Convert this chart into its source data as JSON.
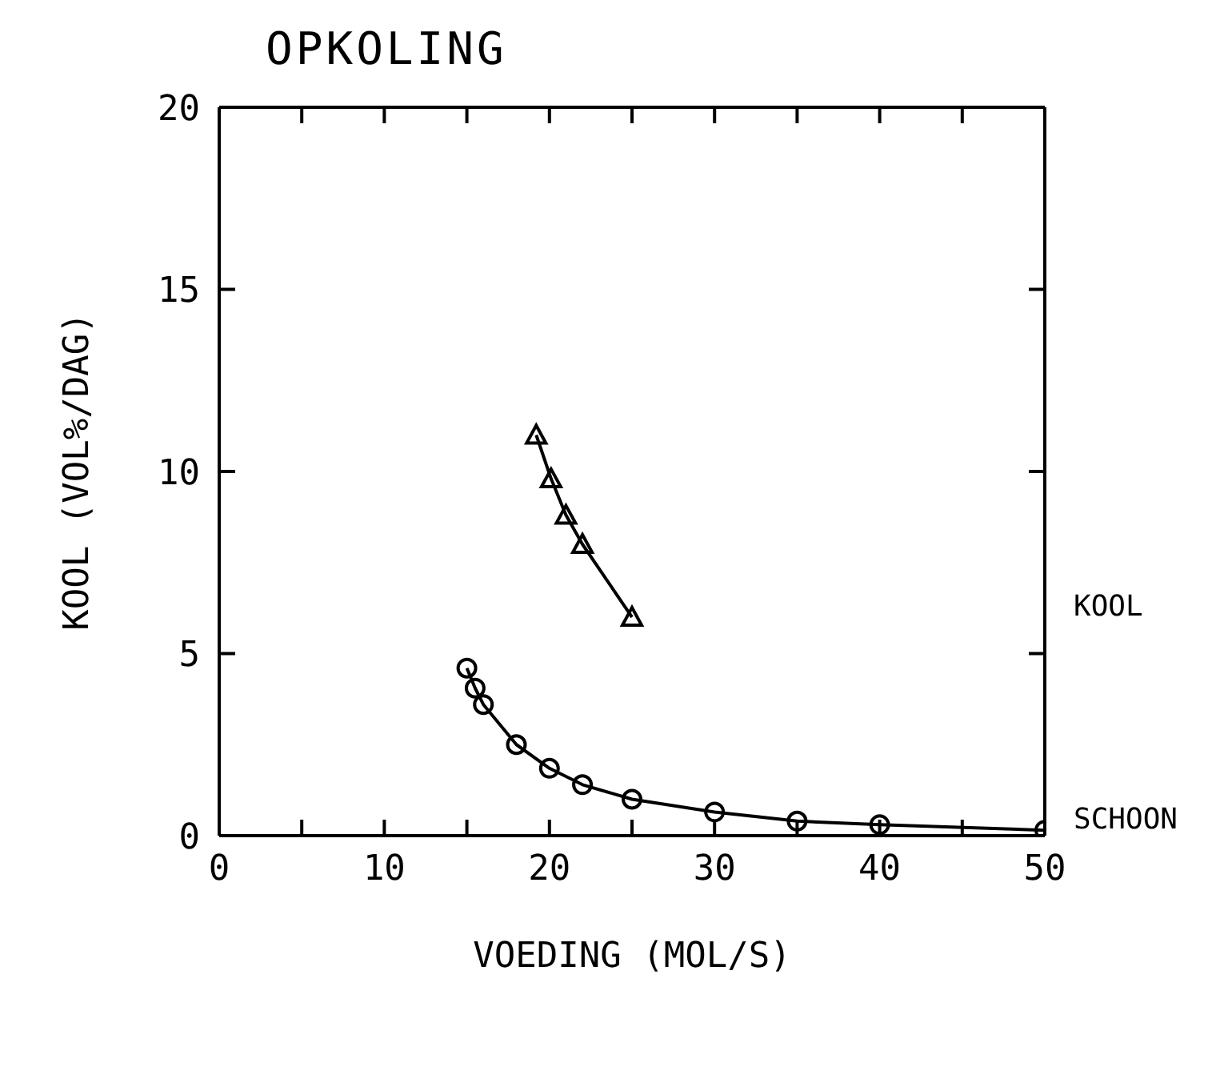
{
  "chart_data": {
    "type": "line",
    "title": "OPKOLING",
    "xlabel": "VOEDING   (MOL/S)",
    "ylabel": "KOOL   (VOL%/DAG)",
    "xlim": [
      0,
      50
    ],
    "xticks": [
      0,
      {
        "value": 5,
        "label": null
      },
      10,
      {
        "value": 15,
        "label": null
      },
      20,
      {
        "value": 25,
        "label": null
      },
      30,
      {
        "value": 35,
        "label": null
      },
      40,
      {
        "value": 45,
        "label": null
      },
      50
    ],
    "ylim": [
      0,
      20
    ],
    "yticks": [
      0,
      5,
      10,
      15,
      20
    ],
    "series": [
      {
        "name": "KOOL",
        "color": "#000000",
        "marker": "triangle",
        "x": [
          19.2,
          20.1,
          21,
          22,
          25
        ],
        "values": [
          11.0,
          9.8,
          8.8,
          8.0,
          6.0
        ]
      },
      {
        "name": "SCHOON",
        "color": "#000000",
        "marker": "circle",
        "x": [
          15,
          15.5,
          16,
          18,
          20,
          22,
          25,
          30,
          35,
          40,
          50
        ],
        "values": [
          4.6,
          4.05,
          3.6,
          2.5,
          1.85,
          1.4,
          1.0,
          0.65,
          0.4,
          0.3,
          0.15
        ]
      }
    ]
  }
}
